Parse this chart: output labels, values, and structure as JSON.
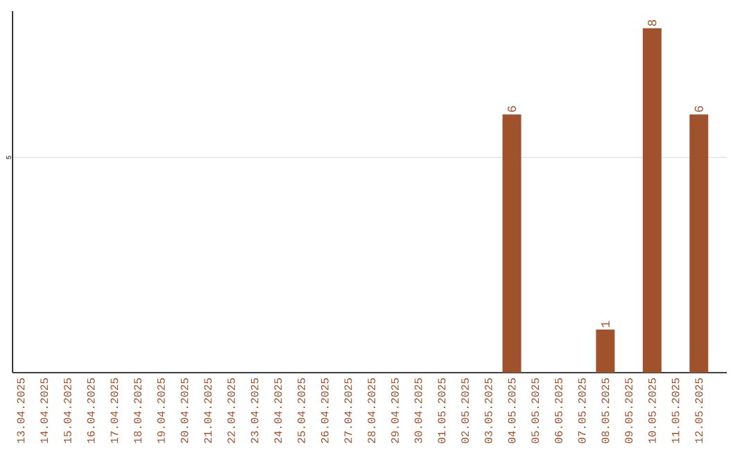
{
  "chart_data": {
    "type": "bar",
    "categories": [
      "13.04.2025",
      "14.04.2025",
      "15.04.2025",
      "16.04.2025",
      "17.04.2025",
      "18.04.2025",
      "19.04.2025",
      "20.04.2025",
      "21.04.2025",
      "22.04.2025",
      "23.04.2025",
      "24.04.2025",
      "25.04.2025",
      "26.04.2025",
      "27.04.2025",
      "28.04.2025",
      "29.04.2025",
      "30.04.2025",
      "01.05.2025",
      "02.05.2025",
      "03.05.2025",
      "04.05.2025",
      "05.05.2025",
      "06.05.2025",
      "07.05.2025",
      "08.05.2025",
      "09.05.2025",
      "10.05.2025",
      "11.05.2025",
      "12.05.2025"
    ],
    "values": [
      null,
      null,
      null,
      null,
      null,
      null,
      null,
      null,
      null,
      null,
      null,
      null,
      null,
      null,
      null,
      null,
      null,
      null,
      null,
      null,
      null,
      6,
      null,
      null,
      null,
      1,
      null,
      8,
      null,
      6
    ],
    "color": "#a0522d",
    "ylim": [
      0,
      8.4
    ],
    "yticks": [
      5
    ],
    "grid": "y",
    "data_labels": true
  }
}
